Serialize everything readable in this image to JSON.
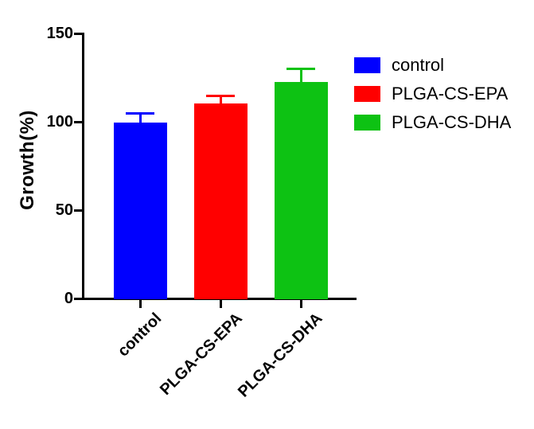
{
  "figure": {
    "background": "#ffffff",
    "axis_color": "#000000"
  },
  "chart_data": {
    "type": "bar",
    "title": "",
    "xlabel": "",
    "ylabel": "Growth(%)",
    "ylim": [
      0,
      150
    ],
    "yticks": [
      0,
      50,
      100,
      150
    ],
    "grid": false,
    "categories": [
      "control",
      "PLGA-CS-EPA",
      "PLGA-CS-DHA"
    ],
    "values": [
      99,
      110,
      122
    ],
    "errors": [
      6,
      5,
      8
    ],
    "error_bar_style": "upper-only-with-cap",
    "bar_colors": [
      "#0000ff",
      "#ff0000",
      "#0dc213"
    ],
    "legend": {
      "position": "upper-right",
      "entries": [
        {
          "label": "control",
          "color": "#0000ff"
        },
        {
          "label": "PLGA-CS-EPA",
          "color": "#ff0000"
        },
        {
          "label": "PLGA-CS-DHA",
          "color": "#0dc213"
        }
      ]
    }
  }
}
